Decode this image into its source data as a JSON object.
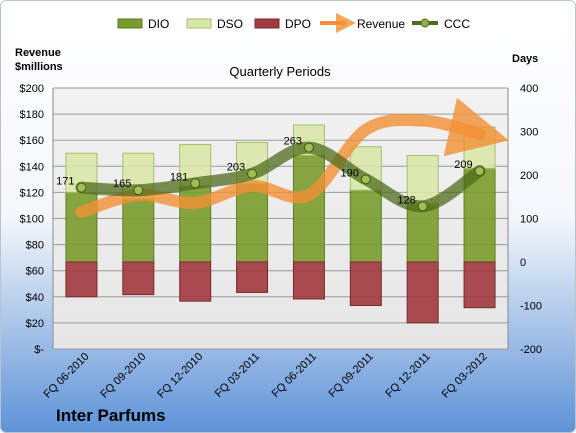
{
  "chart_data": {
    "type": "bar",
    "company": "Inter Parfums",
    "subtitle": "Quarterly Periods",
    "left_axis_title": [
      "Revenue",
      "$millions"
    ],
    "right_axis_title": "Days",
    "left_axis": {
      "min": 0,
      "max": 200,
      "step": 20,
      "tick_labels": [
        "$-",
        "$20",
        "$40",
        "$60",
        "$80",
        "$100",
        "$120",
        "$140",
        "$160",
        "$180",
        "$200"
      ]
    },
    "right_axis": {
      "min": -200,
      "max": 400,
      "step": 100,
      "tick_labels": [
        "-200",
        "-100",
        "0",
        "100",
        "200",
        "300",
        "400"
      ]
    },
    "categories": [
      "FQ 06-2010",
      "FQ 09-2010",
      "FQ 12-2010",
      "FQ 03-2011",
      "FQ 06-2011",
      "FQ 09-2011",
      "FQ 12-2011",
      "FQ 03-2012"
    ],
    "legend": [
      "DIO",
      "DSO",
      "DPO",
      "Revenue",
      "CCC"
    ],
    "series": [
      {
        "name": "DIO",
        "axis": "right",
        "color": "#7a9c2e",
        "values": [
          160,
          145,
          175,
          180,
          245,
          165,
          135,
          215
        ]
      },
      {
        "name": "DSO",
        "axis": "right",
        "color": "#d8e8a8",
        "values": [
          90,
          105,
          95,
          95,
          70,
          100,
          110,
          95
        ]
      },
      {
        "name": "DPO",
        "axis": "right",
        "color": "#a03a3e",
        "values": [
          -80,
          -75,
          -90,
          -70,
          -85,
          -100,
          -140,
          -105
        ]
      },
      {
        "name": "Revenue",
        "axis": "left",
        "color": "#f29035",
        "values": [
          105,
          118,
          112,
          125,
          118,
          168,
          175,
          165
        ]
      },
      {
        "name": "CCC",
        "axis": "right",
        "color": "#4f6b1c",
        "values": [
          171,
          165,
          181,
          203,
          263,
          190,
          128,
          209
        ],
        "labels": [
          "171",
          "165",
          "181",
          "203",
          "263",
          "190",
          "128",
          "209"
        ]
      }
    ]
  }
}
